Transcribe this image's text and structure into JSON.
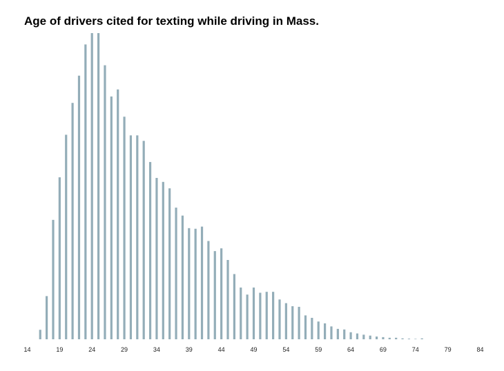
{
  "chart_data": {
    "type": "bar",
    "title": "Age of drivers cited for texting while driving in Mass.",
    "xlabel": "",
    "ylabel": "",
    "x_ticks": [
      14,
      19,
      24,
      29,
      34,
      39,
      44,
      49,
      54,
      59,
      64,
      69,
      74,
      79,
      84
    ],
    "xlim": [
      14,
      84
    ],
    "ylim": [
      0,
      100
    ],
    "grid": false,
    "legend": "none",
    "color": "#93adb8",
    "categories": [
      16,
      17,
      18,
      19,
      20,
      21,
      22,
      23,
      24,
      25,
      26,
      27,
      28,
      29,
      30,
      31,
      32,
      33,
      34,
      35,
      36,
      37,
      38,
      39,
      40,
      41,
      42,
      43,
      44,
      45,
      46,
      47,
      48,
      49,
      50,
      51,
      52,
      53,
      54,
      55,
      56,
      57,
      58,
      59,
      60,
      61,
      62,
      63,
      64,
      65,
      66,
      67,
      68,
      69,
      70,
      71,
      72,
      73,
      74,
      75
    ],
    "values": [
      3.1,
      14.1,
      39.0,
      52.9,
      66.8,
      77.2,
      86.1,
      96.3,
      100.0,
      100.0,
      89.5,
      79.3,
      81.6,
      72.7,
      66.6,
      66.6,
      64.8,
      57.9,
      52.7,
      51.4,
      49.3,
      43.0,
      40.4,
      36.3,
      36.1,
      36.8,
      32.1,
      28.8,
      29.7,
      25.9,
      21.3,
      16.9,
      14.6,
      16.9,
      15.2,
      15.5,
      15.5,
      13.0,
      11.8,
      10.8,
      10.6,
      7.8,
      7.0,
      5.8,
      5.2,
      4.2,
      3.4,
      3.2,
      2.3,
      1.9,
      1.5,
      1.2,
      0.9,
      0.7,
      0.5,
      0.5,
      0.3,
      0.2,
      0.1,
      0.3
    ]
  }
}
